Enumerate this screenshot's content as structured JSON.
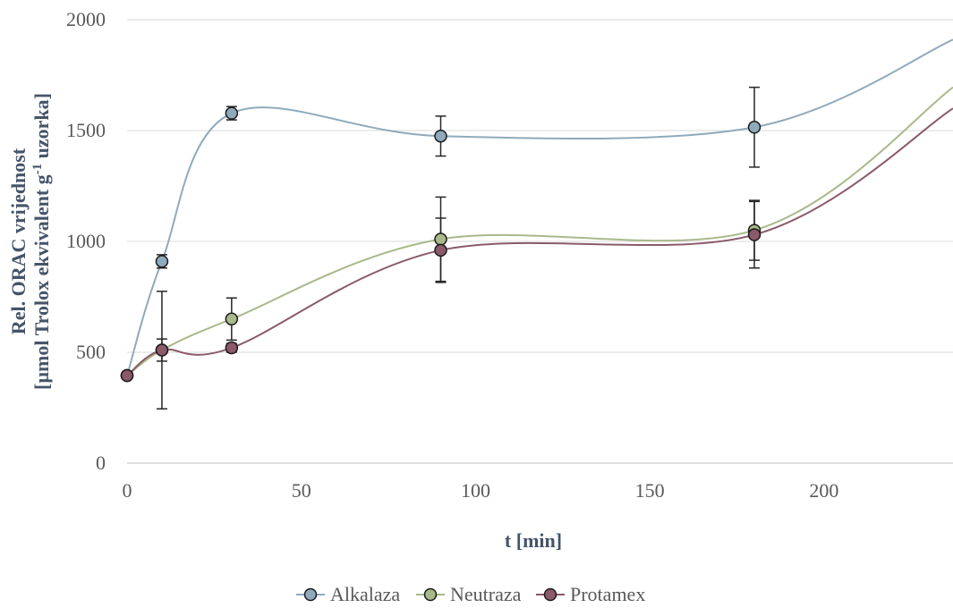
{
  "chart_data": {
    "type": "line",
    "xlabel": "t [min]",
    "ylabel_line1": "Rel. ORAC vrijednost",
    "ylabel_line2_pre": "[µmol Trolox ekvivalent g",
    "ylabel_line2_sup": "-1",
    "ylabel_line2_post": " uzorka]",
    "xlim": [
      0,
      237
    ],
    "ylim": [
      0,
      2000
    ],
    "x_ticks": [
      0,
      50,
      100,
      150,
      200
    ],
    "y_ticks": [
      0,
      500,
      1000,
      1500,
      2000
    ],
    "grid": "horizontal",
    "legend_position": "bottom",
    "series": [
      {
        "name": "Alkalaza",
        "color": "#8faabc",
        "x": [
          0,
          10,
          30,
          90,
          180
        ],
        "y": [
          395,
          910,
          1578,
          1475,
          1515
        ],
        "error": [
          0,
          30,
          30,
          90,
          180
        ],
        "trend_end": [
          237,
          1910
        ]
      },
      {
        "name": "Neutraza",
        "color": "#a9b98a",
        "x": [
          0,
          10,
          30,
          90,
          180
        ],
        "y": [
          395,
          510,
          650,
          1010,
          1050
        ],
        "error": [
          0,
          50,
          95,
          190,
          135
        ],
        "trend_end": [
          237,
          1695
        ]
      },
      {
        "name": "Protamex",
        "color": "#8b5a6a",
        "x": [
          0,
          10,
          30,
          90,
          180
        ],
        "y": [
          395,
          510,
          520,
          960,
          1030
        ],
        "error": [
          0,
          265,
          20,
          145,
          150
        ],
        "trend_end": [
          237,
          1600
        ]
      }
    ]
  }
}
